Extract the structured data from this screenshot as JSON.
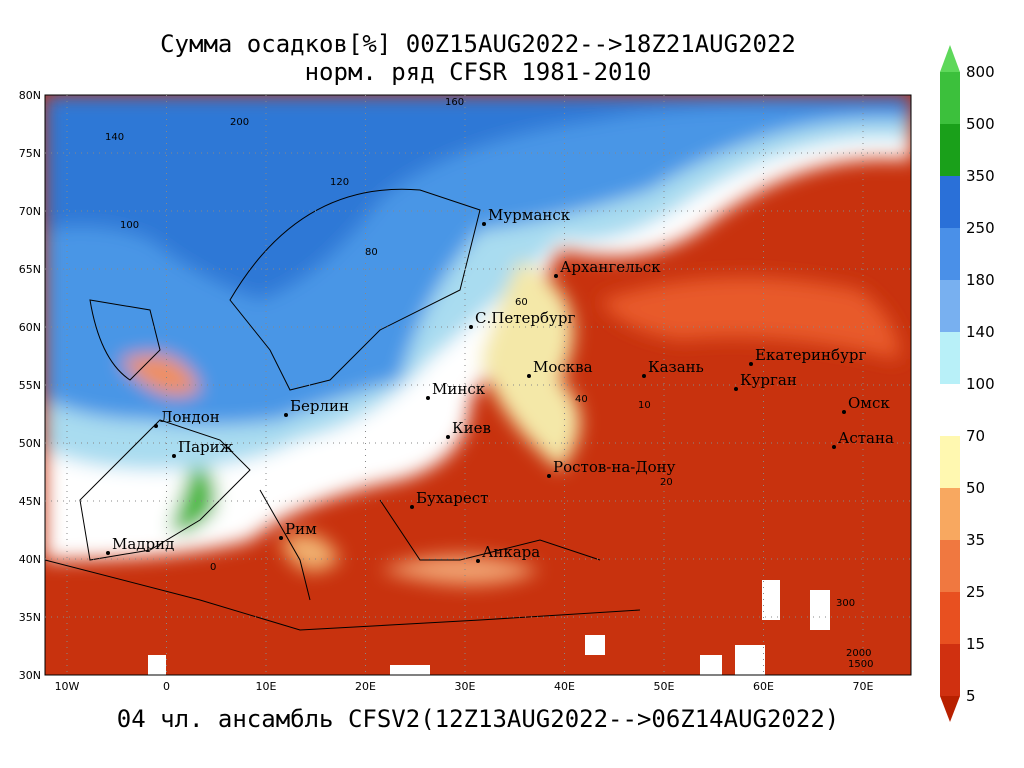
{
  "title": {
    "line1": "Сумма осадков[%] 00Z15AUG2022-->18Z21AUG2022",
    "line2": "норм. ряд CFSR 1981-2010"
  },
  "footer": "04 чл. ансамбль CFSV2(12Z13AUG2022-->06Z14AUG2022)",
  "map": {
    "lat_labels": [
      "80N",
      "75N",
      "70N",
      "65N",
      "60N",
      "55N",
      "50N",
      "45N",
      "40N",
      "35N",
      "30N"
    ],
    "lon_labels": [
      "10W",
      "0",
      "10E",
      "20E",
      "30E",
      "40E",
      "50E",
      "60E",
      "70E"
    ],
    "cities": [
      "Мурманск",
      "Архангельск",
      "С.Петербург",
      "Москва",
      "Казань",
      "Екатеринбург",
      "Курган",
      "Омск",
      "Астана",
      "Минск",
      "Берлин",
      "Лондон",
      "Париж",
      "Киев",
      "Ростов-на-Дону",
      "Бухарест",
      "Рим",
      "Мадрид",
      "Анкара"
    ],
    "contour_labels": [
      "160",
      "200",
      "140",
      "120",
      "100",
      "80",
      "60",
      "40",
      "20",
      "10",
      "0",
      "300",
      "2000",
      "1500"
    ]
  },
  "colorbar": {
    "labels": [
      800,
      500,
      350,
      250,
      180,
      140,
      100,
      70,
      50,
      35,
      25,
      15,
      5
    ]
  }
}
